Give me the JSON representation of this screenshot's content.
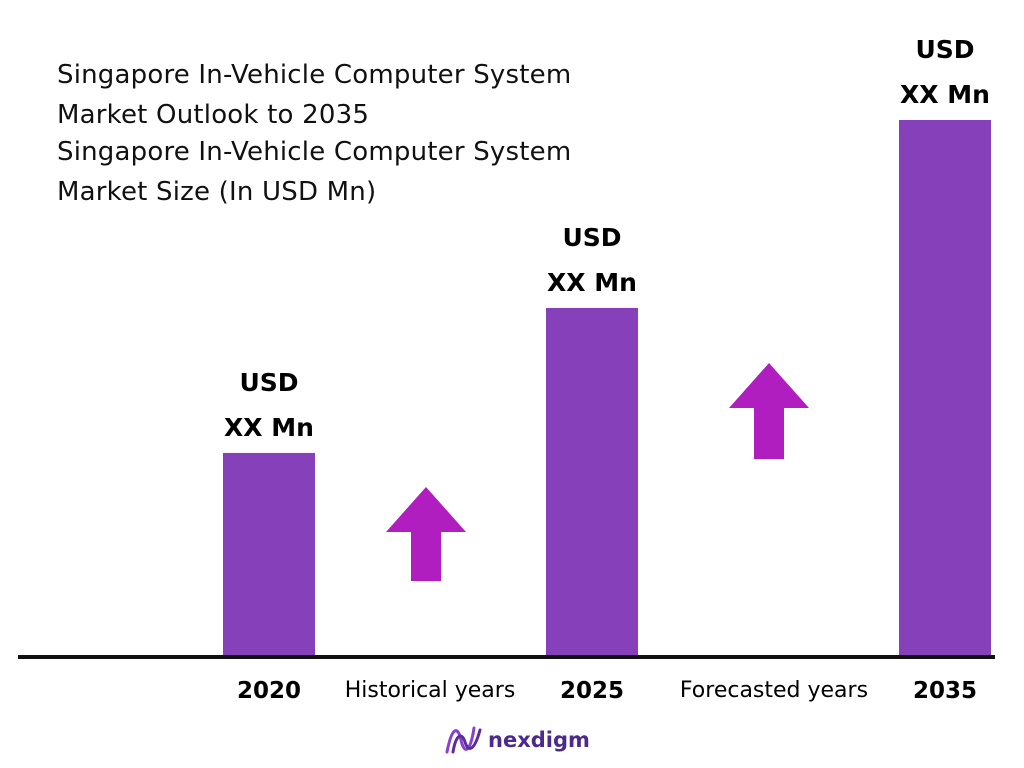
{
  "title_lines": [
    "Singapore In-Vehicle Computer System",
    "Market Outlook to 2035",
    "Singapore In-Vehicle Computer System",
    "Market Size (In USD Mn)"
  ],
  "chart_data": {
    "type": "bar",
    "categories": [
      "2020",
      "2025",
      "2035"
    ],
    "values": [
      38,
      65,
      100
    ],
    "value_labels": [
      [
        "USD",
        "XX Mn"
      ],
      [
        "USD",
        "XX Mn"
      ],
      [
        "USD",
        "XX Mn"
      ]
    ],
    "period_labels": [
      "Historical years",
      "Forecasted years"
    ],
    "bar_color": "#8540ba",
    "arrow_color": "#b01ec0",
    "grid": false,
    "legend": "none"
  },
  "brand": {
    "name": "nexdigm",
    "color": "#4b2a8c",
    "icon": "nexdigm-wave-icon"
  }
}
